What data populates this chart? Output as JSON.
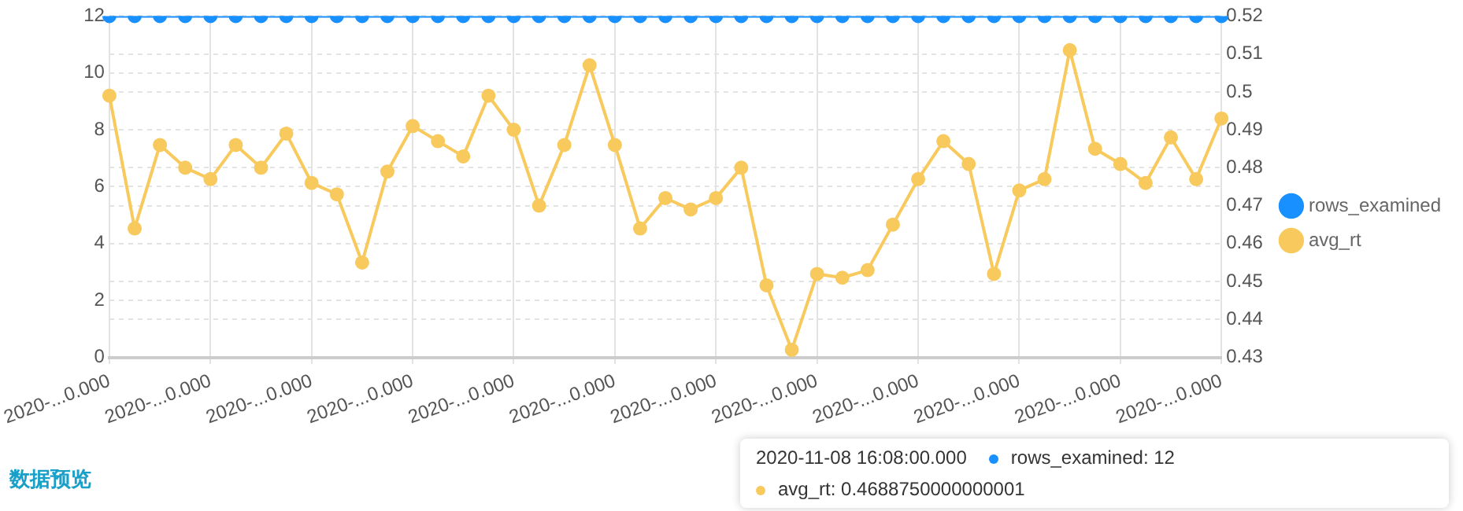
{
  "chart_data": {
    "type": "line",
    "categories": [
      "2020-...0.000",
      null,
      null,
      null,
      "2020-...0.000",
      null,
      null,
      null,
      "2020-...0.000",
      null,
      null,
      null,
      "2020-...0.000",
      null,
      null,
      null,
      "2020-...0.000",
      null,
      null,
      null,
      "2020-...0.000",
      null,
      null,
      null,
      "2020-...0.000",
      null,
      null,
      null,
      "2020-...0.000",
      null,
      null,
      null,
      "2020-...0.000",
      null,
      null,
      null,
      "2020-...0.000",
      null,
      null,
      null,
      "2020-...0.000",
      null,
      null,
      null,
      "2020-...0.000"
    ],
    "series": [
      {
        "name": "rows_examined",
        "color": "#1890ff",
        "values": [
          12,
          12,
          12,
          12,
          12,
          12,
          12,
          12,
          12,
          12,
          12,
          12,
          12,
          12,
          12,
          12,
          12,
          12,
          12,
          12,
          12,
          12,
          12,
          12,
          12,
          12,
          12,
          12,
          12,
          12,
          12,
          12,
          12,
          12,
          12,
          12,
          12,
          12,
          12,
          12,
          12,
          12,
          12,
          12,
          12
        ]
      },
      {
        "name": "avg_rt",
        "color": "#f8c95c",
        "axis": "y2",
        "values": [
          0.499,
          0.464,
          0.486,
          0.48,
          0.477,
          0.486,
          0.48,
          0.489,
          0.476,
          0.473,
          0.455,
          0.479,
          0.491,
          0.487,
          0.483,
          0.499,
          0.49,
          0.47,
          0.486,
          0.507,
          0.486,
          0.464,
          0.472,
          0.469,
          0.472,
          0.48,
          0.449,
          0.432,
          0.452,
          0.451,
          0.453,
          0.465,
          0.477,
          0.487,
          0.481,
          0.452,
          0.474,
          0.477,
          0.511,
          0.485,
          0.481,
          0.476,
          0.488,
          0.477,
          0.493
        ]
      }
    ],
    "ylim": [
      0,
      12
    ],
    "yticks": [
      0,
      2,
      4,
      6,
      8,
      10,
      12
    ],
    "y2lim": [
      0.43,
      0.52
    ],
    "y2ticks": [
      0.43,
      0.44,
      0.45,
      0.46,
      0.47,
      0.48,
      0.49,
      0.5,
      0.51,
      0.52
    ],
    "grid": true,
    "legend": "right",
    "marker": "circle",
    "line_style": "solid",
    "annotations": [
      "2020-11-08 16:08:00.000",
      "rows_examined: 12",
      "avg_rt: 0.4688750000000001",
      "数据预览"
    ]
  }
}
